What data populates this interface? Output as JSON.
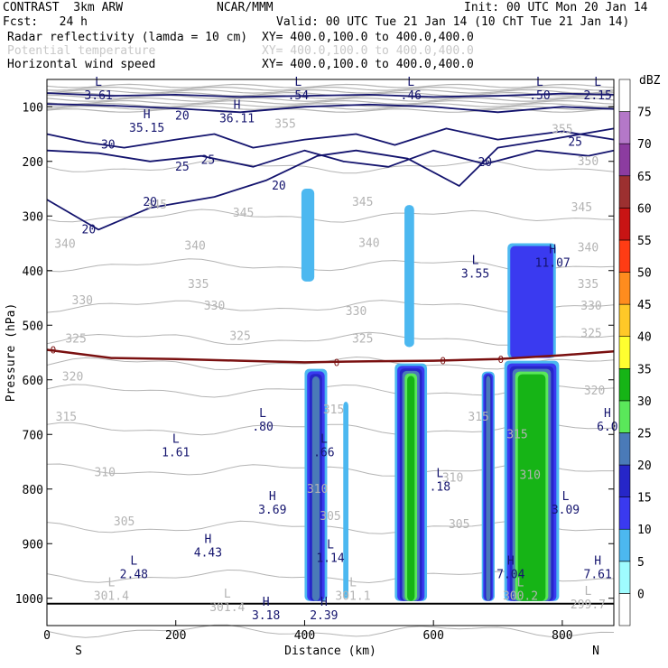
{
  "header": {
    "model": "CONTRAST  3km ARW",
    "center": "NCAR/MMM",
    "init": "Init: 00 UTC Mon 20 Jan 14",
    "fcst": "Fcst:   24 h",
    "valid": "Valid: 00 UTC Tue 21 Jan 14 (10 ChT Tue 21 Jan 14)",
    "fields": [
      {
        "name": "Radar reflectivity (lamda = 10 cm)",
        "xy": "XY= 400.0,100.0 to 400.0,400.0",
        "muted": false
      },
      {
        "name": "Potential temperature",
        "xy": "XY= 400.0,100.0 to 400.0,400.0",
        "muted": true
      },
      {
        "name": "Horizontal wind speed",
        "xy": "XY= 400.0,100.0 to 400.0,400.0",
        "muted": false
      }
    ]
  },
  "chart_data": {
    "type": "contour",
    "xlabel": "Distance (km)",
    "ylabel": "Pressure (hPa)",
    "xlim": [
      0,
      880
    ],
    "ylim": [
      1050,
      50
    ],
    "x_ticks": [
      0,
      200,
      400,
      600,
      800
    ],
    "y_ticks": [
      100,
      200,
      300,
      400,
      500,
      600,
      700,
      800,
      900,
      1000
    ],
    "x_end_labels": {
      "left": "S",
      "right": "N"
    },
    "colorbar": {
      "unit": "dBZ",
      "levels": [
        0,
        5,
        10,
        15,
        20,
        25,
        30,
        35,
        40,
        45,
        50,
        55,
        60,
        65,
        70,
        75
      ],
      "colors": [
        "#ffffff",
        "#9ffcff",
        "#4cb8f0",
        "#3a3af0",
        "#2626c8",
        "#4a7ab8",
        "#5ae85a",
        "#16b416",
        "#ffff30",
        "#ffc828",
        "#ff8c1e",
        "#ff3c14",
        "#c81414",
        "#9c3030",
        "#8c3ca0",
        "#b478c8",
        "#ffffff"
      ]
    },
    "reflectivity_cells": [
      {
        "x": [
          400,
          435
        ],
        "p": [
          580,
          1005
        ],
        "dbz": 20
      },
      {
        "x": [
          540,
          590
        ],
        "p": [
          570,
          1005
        ],
        "dbz": 30
      },
      {
        "x": [
          675,
          695
        ],
        "p": [
          585,
          1005
        ],
        "dbz": 20
      },
      {
        "x": [
          710,
          795
        ],
        "p": [
          565,
          1005
        ],
        "dbz": 30
      },
      {
        "x": [
          460,
          468
        ],
        "p": [
          640,
          1000
        ],
        "dbz": 5
      },
      {
        "x": [
          395,
          415
        ],
        "p": [
          250,
          420
        ],
        "dbz": 5
      },
      {
        "x": [
          555,
          570
        ],
        "p": [
          280,
          540
        ],
        "dbz": 5
      },
      {
        "x": [
          715,
          790
        ],
        "p": [
          350,
          560
        ],
        "dbz": 10
      }
    ],
    "freezing_level": {
      "label": "0",
      "x": [
        0,
        100,
        200,
        300,
        400,
        500,
        600,
        700,
        800,
        880
      ],
      "p": [
        545,
        560,
        562,
        565,
        568,
        566,
        565,
        562,
        555,
        548
      ]
    },
    "theta_labels": [
      {
        "x": 370,
        "p": 132,
        "text": "355"
      },
      {
        "x": 800,
        "p": 142,
        "text": "355"
      },
      {
        "x": 840,
        "p": 200,
        "text": "350"
      },
      {
        "x": 305,
        "p": 295,
        "text": "345"
      },
      {
        "x": 170,
        "p": 280,
        "text": "345"
      },
      {
        "x": 490,
        "p": 275,
        "text": "345"
      },
      {
        "x": 830,
        "p": 285,
        "text": "345"
      },
      {
        "x": 28,
        "p": 352,
        "text": "340"
      },
      {
        "x": 230,
        "p": 355,
        "text": "340"
      },
      {
        "x": 500,
        "p": 350,
        "text": "340"
      },
      {
        "x": 840,
        "p": 358,
        "text": "340"
      },
      {
        "x": 235,
        "p": 425,
        "text": "335"
      },
      {
        "x": 840,
        "p": 425,
        "text": "335"
      },
      {
        "x": 55,
        "p": 455,
        "text": "330"
      },
      {
        "x": 260,
        "p": 465,
        "text": "330"
      },
      {
        "x": 480,
        "p": 475,
        "text": "330"
      },
      {
        "x": 845,
        "p": 465,
        "text": "330"
      },
      {
        "x": 45,
        "p": 525,
        "text": "325"
      },
      {
        "x": 300,
        "p": 520,
        "text": "325"
      },
      {
        "x": 490,
        "p": 525,
        "text": "325"
      },
      {
        "x": 845,
        "p": 515,
        "text": "325"
      },
      {
        "x": 40,
        "p": 595,
        "text": "320"
      },
      {
        "x": 850,
        "p": 620,
        "text": "320"
      },
      {
        "x": 30,
        "p": 668,
        "text": "315"
      },
      {
        "x": 445,
        "p": 655,
        "text": "315"
      },
      {
        "x": 670,
        "p": 668,
        "text": "315"
      },
      {
        "x": 730,
        "p": 700,
        "text": "315"
      },
      {
        "x": 90,
        "p": 770,
        "text": "310"
      },
      {
        "x": 630,
        "p": 780,
        "text": "310"
      },
      {
        "x": 750,
        "p": 775,
        "text": "310"
      },
      {
        "x": 120,
        "p": 860,
        "text": "305"
      },
      {
        "x": 440,
        "p": 850,
        "text": "305"
      },
      {
        "x": 640,
        "p": 865,
        "text": "305"
      },
      {
        "x": 420,
        "p": 800,
        "text": "310"
      }
    ],
    "theta_lines": [
      355,
      350,
      345,
      340,
      335,
      330,
      325,
      320,
      315,
      310,
      305,
      300
    ],
    "wind_labels": [
      {
        "x": 210,
        "p": 117,
        "text": "20"
      },
      {
        "x": 95,
        "p": 170,
        "text": "30"
      },
      {
        "x": 210,
        "p": 210,
        "text": "25"
      },
      {
        "x": 250,
        "p": 198,
        "text": "25"
      },
      {
        "x": 360,
        "p": 245,
        "text": "20"
      },
      {
        "x": 160,
        "p": 275,
        "text": "20"
      },
      {
        "x": 65,
        "p": 325,
        "text": "20"
      },
      {
        "x": 820,
        "p": 165,
        "text": "25"
      },
      {
        "x": 680,
        "p": 202,
        "text": "20"
      }
    ],
    "extrema": [
      {
        "x": 155,
        "p": 128,
        "kind": "H",
        "value": "35.15"
      },
      {
        "x": 295,
        "p": 110,
        "kind": "H",
        "value": "36.11"
      },
      {
        "x": 80,
        "p": 68,
        "kind": "L",
        "value": "3.61"
      },
      {
        "x": 390,
        "p": 68,
        "kind": "L",
        "value": ".54"
      },
      {
        "x": 565,
        "p": 68,
        "kind": "L",
        "value": ".46"
      },
      {
        "x": 765,
        "p": 68,
        "kind": "L",
        "value": ".50"
      },
      {
        "x": 855,
        "p": 68,
        "kind": "L",
        "value": "2.15"
      },
      {
        "x": 665,
        "p": 395,
        "kind": "L",
        "value": "3.55"
      },
      {
        "x": 785,
        "p": 375,
        "kind": "H",
        "value": "11.07"
      },
      {
        "x": 335,
        "p": 675,
        "kind": "L",
        "value": ".80"
      },
      {
        "x": 200,
        "p": 722,
        "kind": "L",
        "value": "1.61"
      },
      {
        "x": 430,
        "p": 722,
        "kind": "L",
        "value": ".66"
      },
      {
        "x": 610,
        "p": 785,
        "kind": "L",
        "value": ".18"
      },
      {
        "x": 350,
        "p": 827,
        "kind": "H",
        "value": "3.69"
      },
      {
        "x": 805,
        "p": 827,
        "kind": "L",
        "value": "3.09"
      },
      {
        "x": 870,
        "p": 675,
        "kind": "H",
        "value": "6.0"
      },
      {
        "x": 250,
        "p": 905,
        "kind": "H",
        "value": "4.43"
      },
      {
        "x": 440,
        "p": 915,
        "kind": "L",
        "value": "1.14"
      },
      {
        "x": 135,
        "p": 945,
        "kind": "L",
        "value": "2.48"
      },
      {
        "x": 720,
        "p": 945,
        "kind": "H",
        "value": "7.04"
      },
      {
        "x": 855,
        "p": 945,
        "kind": "H",
        "value": "7.61"
      },
      {
        "x": 340,
        "p": 1020,
        "kind": "H",
        "value": "3.18"
      },
      {
        "x": 430,
        "p": 1020,
        "kind": "H",
        "value": "2.39"
      }
    ],
    "theta_extrema": [
      {
        "x": 100,
        "p": 985,
        "kind": "L",
        "value": "301.4"
      },
      {
        "x": 280,
        "p": 1005,
        "kind": "L",
        "value": "301.4"
      },
      {
        "x": 475,
        "p": 985,
        "kind": "L",
        "value": "301.1"
      },
      {
        "x": 735,
        "p": 985,
        "kind": "L",
        "value": "300.2"
      },
      {
        "x": 840,
        "p": 1000,
        "kind": "L",
        "value": "299.7"
      }
    ],
    "surface_line_p": 1010
  },
  "colors": {
    "wind": "#14146e",
    "theta": "#b4b4b4",
    "freezing": "#7a1010",
    "axis": "#000000"
  }
}
